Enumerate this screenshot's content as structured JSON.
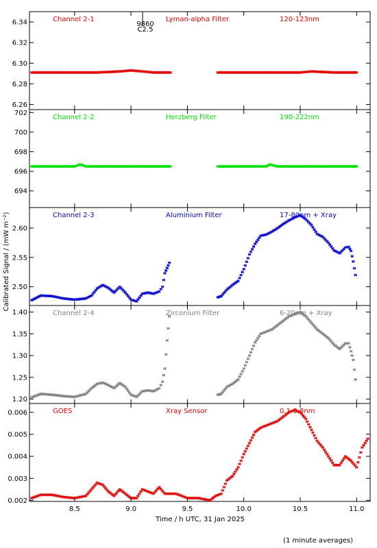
{
  "colors": {
    "red": "#e00000",
    "green": "#00e000",
    "blue": "#0000cc",
    "gray": "#7f7f7f",
    "frame": "#000000"
  },
  "annotation": {
    "top": "9860",
    "bottom": "C2.5"
  },
  "footnote": "(1 minute averages)",
  "chart_data": [
    {
      "type": "scatter",
      "panel_labels": [
        "Channel 2-1",
        "Lyman-alpha Filter",
        "120-123nm"
      ],
      "color": "red",
      "xlim": [
        8.1,
        11.12
      ],
      "ylim": [
        6.255,
        6.35
      ],
      "yticks": [
        6.26,
        6.28,
        6.3,
        6.32,
        6.34
      ],
      "ytick_labels": [
        "6.26",
        "6.28",
        "6.30",
        "6.32",
        "6.34"
      ],
      "x": [
        8.12,
        8.3,
        8.5,
        8.7,
        8.9,
        9.0,
        9.1,
        9.2,
        9.35,
        9.77,
        9.9,
        10.1,
        10.3,
        10.5,
        10.6,
        10.8,
        11.0
      ],
      "y": [
        6.291,
        6.291,
        6.291,
        6.291,
        6.292,
        6.293,
        6.292,
        6.291,
        6.291,
        6.291,
        6.291,
        6.291,
        6.291,
        6.291,
        6.292,
        6.291,
        6.291
      ]
    },
    {
      "type": "scatter",
      "panel_labels": [
        "Channel 2-2",
        "Herzberg Filter",
        "190-222nm"
      ],
      "color": "green",
      "xlim": [
        8.1,
        11.12
      ],
      "ylim": [
        692.3,
        702.3
      ],
      "yticks": [
        694,
        696,
        698,
        700,
        702
      ],
      "ytick_labels": [
        "694",
        "696",
        "698",
        "700",
        "702"
      ],
      "x": [
        8.12,
        8.3,
        8.5,
        8.55,
        8.6,
        8.8,
        9.0,
        9.2,
        9.35,
        9.77,
        9.9,
        10.1,
        10.2,
        10.23,
        10.3,
        10.5,
        10.8,
        11.0
      ],
      "y": [
        696.5,
        696.5,
        696.5,
        696.7,
        696.5,
        696.5,
        696.5,
        696.5,
        696.5,
        696.5,
        696.5,
        696.5,
        696.5,
        696.7,
        696.5,
        696.5,
        696.5,
        696.5
      ]
    },
    {
      "type": "scatter",
      "panel_labels": [
        "Channel 2-3",
        "Aluminium Filter",
        "17-80nm + Xray"
      ],
      "color": "blue",
      "xlim": [
        8.1,
        11.12
      ],
      "ylim": [
        2.468,
        2.635
      ],
      "yticks": [
        2.5,
        2.55,
        2.6
      ],
      "ytick_labels": [
        "2.50",
        "2.55",
        "2.60"
      ],
      "x": [
        8.12,
        8.2,
        8.3,
        8.4,
        8.5,
        8.6,
        8.65,
        8.7,
        8.75,
        8.8,
        8.85,
        8.9,
        8.95,
        9.0,
        9.05,
        9.1,
        9.15,
        9.2,
        9.25,
        9.28,
        9.3,
        9.32,
        9.34,
        9.77,
        9.8,
        9.85,
        9.9,
        9.95,
        10.0,
        10.05,
        10.1,
        10.15,
        10.2,
        10.25,
        10.3,
        10.35,
        10.4,
        10.45,
        10.5,
        10.55,
        10.6,
        10.65,
        10.7,
        10.75,
        10.8,
        10.85,
        10.9,
        10.93,
        10.95,
        10.97,
        10.99
      ],
      "y": [
        2.477,
        2.485,
        2.484,
        2.48,
        2.478,
        2.48,
        2.485,
        2.497,
        2.503,
        2.498,
        2.49,
        2.5,
        2.49,
        2.478,
        2.475,
        2.488,
        2.49,
        2.488,
        2.492,
        2.5,
        2.523,
        2.532,
        2.541,
        2.482,
        2.484,
        2.495,
        2.503,
        2.51,
        2.53,
        2.555,
        2.573,
        2.587,
        2.589,
        2.594,
        2.6,
        2.607,
        2.613,
        2.618,
        2.622,
        2.615,
        2.605,
        2.59,
        2.585,
        2.575,
        2.562,
        2.557,
        2.567,
        2.568,
        2.561,
        2.543,
        2.52
      ]
    },
    {
      "type": "scatter",
      "panel_labels": [
        "Channel 2-4",
        "Zirconium Filter",
        "6-20nm + Xray"
      ],
      "color": "gray",
      "xlim": [
        8.1,
        11.12
      ],
      "ylim": [
        1.19,
        1.415
      ],
      "yticks": [
        1.2,
        1.25,
        1.3,
        1.35,
        1.4
      ],
      "ytick_labels": [
        "1.20",
        "1.25",
        "1.30",
        "1.35",
        "1.40"
      ],
      "x": [
        8.12,
        8.2,
        8.3,
        8.4,
        8.5,
        8.6,
        8.65,
        8.7,
        8.75,
        8.8,
        8.85,
        8.9,
        8.95,
        9.0,
        9.05,
        9.1,
        9.15,
        9.2,
        9.25,
        9.28,
        9.3,
        9.32,
        9.34,
        9.77,
        9.8,
        9.85,
        9.9,
        9.95,
        10.0,
        10.05,
        10.1,
        10.15,
        10.2,
        10.25,
        10.3,
        10.35,
        10.4,
        10.45,
        10.5,
        10.55,
        10.6,
        10.65,
        10.7,
        10.75,
        10.8,
        10.85,
        10.9,
        10.93,
        10.95,
        10.97,
        10.99
      ],
      "y": [
        1.204,
        1.212,
        1.21,
        1.207,
        1.205,
        1.212,
        1.225,
        1.235,
        1.238,
        1.232,
        1.225,
        1.237,
        1.228,
        1.21,
        1.205,
        1.218,
        1.22,
        1.218,
        1.225,
        1.24,
        1.27,
        1.335,
        1.39,
        1.21,
        1.212,
        1.228,
        1.235,
        1.245,
        1.27,
        1.3,
        1.33,
        1.35,
        1.355,
        1.36,
        1.37,
        1.38,
        1.39,
        1.395,
        1.4,
        1.39,
        1.375,
        1.36,
        1.35,
        1.34,
        1.325,
        1.315,
        1.328,
        1.328,
        1.31,
        1.29,
        1.245
      ]
    },
    {
      "type": "scatter",
      "panel_labels": [
        "GOES",
        "Xray Sensor",
        "0.1-0.8nm"
      ],
      "color": "red",
      "xlim": [
        8.1,
        11.12
      ],
      "ylim": [
        0.00195,
        0.0064
      ],
      "yticks": [
        0.002,
        0.003,
        0.004,
        0.005,
        0.006
      ],
      "ytick_labels": [
        "0.002",
        "0.003",
        "0.004",
        "0.005",
        "0.006"
      ],
      "x": [
        8.12,
        8.2,
        8.3,
        8.4,
        8.5,
        8.6,
        8.65,
        8.7,
        8.75,
        8.8,
        8.85,
        8.9,
        8.95,
        9.0,
        9.05,
        9.1,
        9.15,
        9.2,
        9.25,
        9.3,
        9.4,
        9.5,
        9.6,
        9.7,
        9.75,
        9.8,
        9.85,
        9.9,
        9.95,
        10.0,
        10.05,
        10.1,
        10.15,
        10.2,
        10.25,
        10.3,
        10.35,
        10.4,
        10.45,
        10.5,
        10.55,
        10.6,
        10.65,
        10.7,
        10.75,
        10.8,
        10.85,
        10.9,
        10.95,
        11.0,
        11.05,
        11.1
      ],
      "y": [
        0.0021,
        0.00225,
        0.00225,
        0.00215,
        0.0021,
        0.0022,
        0.0025,
        0.0028,
        0.0027,
        0.0024,
        0.0022,
        0.0025,
        0.0023,
        0.0021,
        0.0021,
        0.0025,
        0.0024,
        0.0023,
        0.0026,
        0.0023,
        0.0023,
        0.0021,
        0.0021,
        0.002,
        0.0022,
        0.0023,
        0.0029,
        0.0031,
        0.0035,
        0.0041,
        0.0046,
        0.0051,
        0.0053,
        0.0054,
        0.0055,
        0.0056,
        0.0058,
        0.006,
        0.0061,
        0.006,
        0.0057,
        0.0052,
        0.0047,
        0.0044,
        0.004,
        0.0036,
        0.0036,
        0.004,
        0.0038,
        0.0035,
        0.0044,
        0.0048
      ]
    }
  ],
  "xaxis": {
    "ticks": [
      8.5,
      9.0,
      9.5,
      10.0,
      10.5,
      11.0
    ],
    "tick_labels": [
      "8.5",
      "9.0",
      "9.5",
      "10.0",
      "10.5",
      "11.0"
    ],
    "label": "Time / h UTC, 31 Jan 2025"
  },
  "ylabel": "Calibrated Signal / (mW m⁻²)"
}
